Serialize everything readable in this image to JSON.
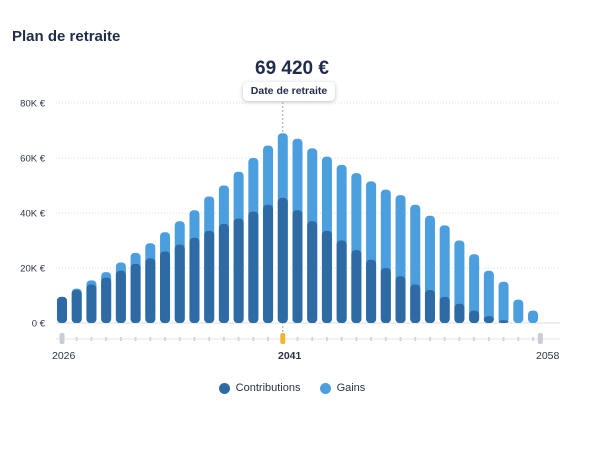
{
  "page": {
    "title": "Plan de retraite"
  },
  "headline": {
    "value": "69 420 €",
    "tooltip": "Date de retraite"
  },
  "colors": {
    "contributions": "#2e6aa4",
    "gains": "#4c9fde",
    "marker": "#f2b531",
    "grid": "#d9dde3",
    "text": "#2a3346"
  },
  "chart_data": {
    "type": "bar",
    "stacked": true,
    "x": [
      2026,
      2027,
      2028,
      2029,
      2030,
      2031,
      2032,
      2033,
      2034,
      2035,
      2036,
      2037,
      2038,
      2039,
      2040,
      2041,
      2042,
      2043,
      2044,
      2045,
      2046,
      2047,
      2048,
      2049,
      2050,
      2051,
      2052,
      2053,
      2054,
      2055,
      2056,
      2057,
      2058
    ],
    "series": [
      {
        "name": "Contributions",
        "values": [
          9.5,
          12,
          14,
          16.5,
          19,
          21.5,
          23.5,
          26,
          28.5,
          31,
          33.5,
          36,
          38,
          40.5,
          43,
          45.5,
          41,
          37,
          33.5,
          30,
          26.5,
          23,
          20,
          17,
          14,
          12,
          9.5,
          7,
          4.5,
          2.5,
          1,
          0,
          0
        ]
      },
      {
        "name": "Gains",
        "values": [
          0,
          0.5,
          1.5,
          2,
          3,
          4,
          5.5,
          7,
          8.5,
          10,
          12.5,
          14,
          17,
          19.5,
          21.5,
          23.5,
          26,
          26.5,
          27,
          27.5,
          28,
          28.5,
          28.5,
          29.5,
          29,
          27,
          26,
          23,
          20.5,
          16.5,
          14,
          8.5,
          4.5
        ]
      }
    ],
    "yticks": [
      "0 €",
      "20K €",
      "40K €",
      "60K €",
      "80K €"
    ],
    "ylim": [
      0,
      80
    ],
    "x_tick_labels": [
      "2026",
      "2041",
      "2058"
    ],
    "highlight": {
      "year": 2041,
      "label": "Date de retraite",
      "value": "69 420 €"
    },
    "grid": true,
    "legend": "bottom"
  },
  "legend": {
    "contributions_label": "Contributions",
    "gains_label": "Gains"
  },
  "xaxis": {
    "start": "2026",
    "mid": "2041",
    "end": "2058"
  }
}
